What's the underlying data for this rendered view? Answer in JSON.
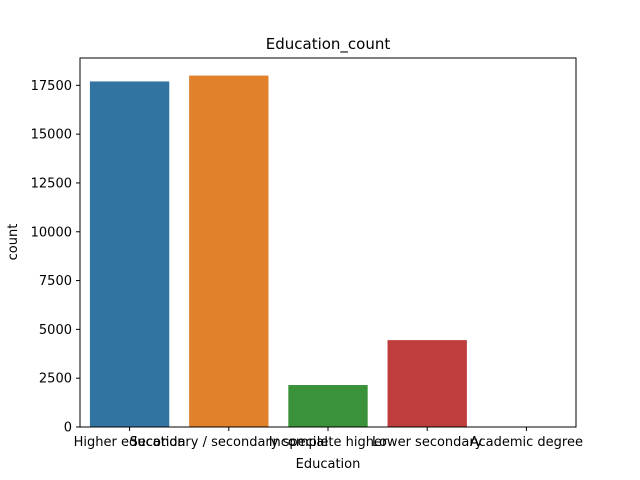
{
  "chart_data": {
    "type": "bar",
    "title": "Education_count",
    "xlabel": "Education",
    "ylabel": "count",
    "categories": [
      "Higher education",
      "Secondary / secondary special",
      "Incomplete higher",
      "Lower secondary",
      "Academic degree"
    ],
    "values": [
      17700,
      18000,
      2150,
      4450,
      20
    ],
    "colors": [
      "#3274a1",
      "#e1812c",
      "#3a923a",
      "#c03d3e",
      "#9372b2"
    ],
    "ylim": [
      0,
      18900
    ],
    "yticks": [
      0,
      2500,
      5000,
      7500,
      10000,
      12500,
      15000,
      17500
    ],
    "ytick_labels": [
      "0",
      "2500",
      "5000",
      "7500",
      "10000",
      "12500",
      "15000",
      "17500"
    ],
    "grid": false,
    "legend": "none"
  }
}
